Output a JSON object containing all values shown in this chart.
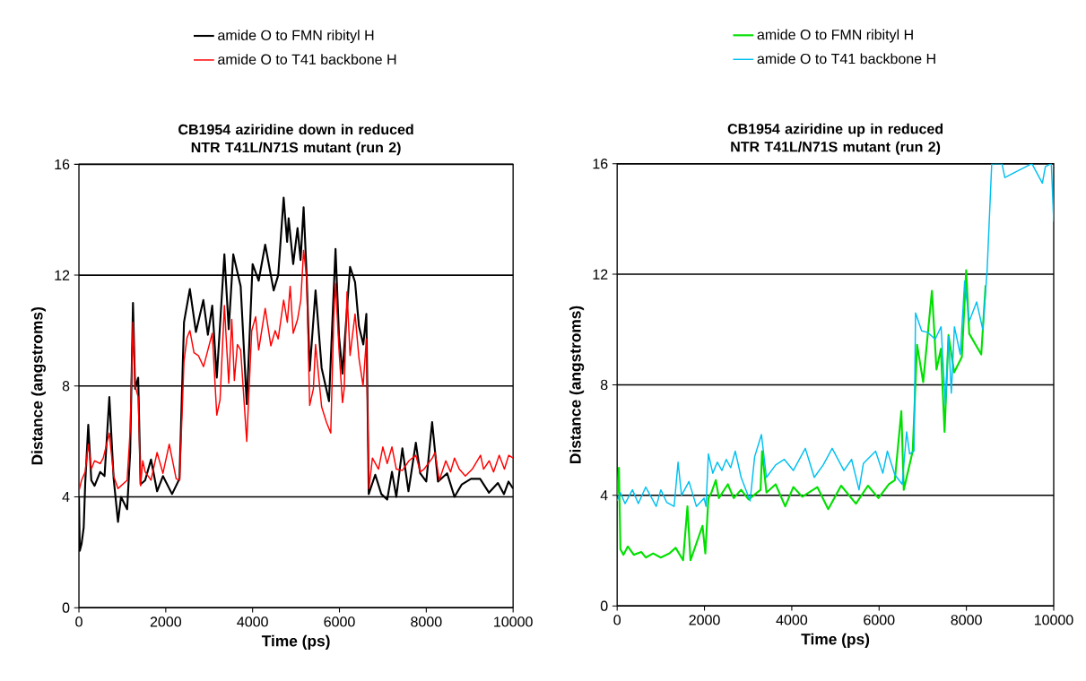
{
  "chart_data": [
    {
      "type": "line",
      "title": "CB1954 aziridine down in reduced NTR T41L/N71S mutant (run 2)",
      "xlabel": "Time (ps)",
      "ylabel": "Distance (angstroms)",
      "xlim": [
        0,
        10000
      ],
      "ylim": [
        0,
        16
      ],
      "xticks": [
        0,
        2000,
        4000,
        6000,
        8000,
        10000
      ],
      "yticks": [
        0,
        4,
        8,
        12,
        16
      ],
      "grid": "y",
      "legend": "top",
      "marker": "none",
      "line_style": "solid",
      "series": [
        {
          "name": "amide O to FMN ribityl H",
          "color": "#000000",
          "x": [
            0,
            20,
            60,
            110,
            145,
            215,
            285,
            360,
            490,
            590,
            700,
            800,
            900,
            970,
            1110,
            1180,
            1245,
            1295,
            1365,
            1420,
            1525,
            1660,
            1800,
            1935,
            2145,
            2315,
            2420,
            2555,
            2695,
            2865,
            2970,
            3070,
            3175,
            3350,
            3450,
            3555,
            3725,
            3865,
            4000,
            4140,
            4290,
            4485,
            4590,
            4715,
            4795,
            4830,
            4935,
            5035,
            5105,
            5175,
            5245,
            5315,
            5450,
            5590,
            5760,
            5830,
            5910,
            5990,
            6070,
            6175,
            6245,
            6360,
            6450,
            6550,
            6620,
            6675,
            6825,
            6965,
            7100,
            7210,
            7310,
            7450,
            7590,
            7760,
            7860,
            8000,
            8135,
            8270,
            8480,
            8650,
            8820,
            9030,
            9240,
            9445,
            9650,
            9790,
            9895,
            10000
          ],
          "values": [
            4.0,
            2.05,
            2.3,
            2.9,
            4.5,
            6.6,
            4.6,
            4.4,
            4.9,
            4.75,
            7.6,
            4.65,
            3.1,
            4.0,
            3.55,
            5.6,
            11.0,
            7.9,
            8.3,
            4.45,
            4.6,
            5.35,
            4.2,
            4.75,
            4.1,
            4.65,
            10.3,
            11.5,
            9.95,
            11.1,
            9.85,
            10.9,
            8.3,
            12.75,
            10.05,
            12.75,
            11.6,
            7.35,
            12.4,
            11.8,
            13.1,
            11.45,
            12.0,
            14.8,
            13.2,
            14.05,
            12.4,
            13.7,
            12.55,
            14.45,
            12.0,
            8.55,
            11.45,
            8.65,
            7.45,
            10.05,
            12.95,
            9.8,
            8.45,
            10.8,
            12.3,
            11.75,
            10.15,
            9.5,
            10.6,
            4.1,
            4.8,
            4.1,
            3.9,
            4.9,
            4.0,
            5.75,
            4.2,
            5.95,
            4.85,
            4.55,
            6.7,
            4.55,
            4.85,
            4.0,
            4.45,
            4.65,
            4.65,
            4.15,
            4.5,
            4.1,
            4.55,
            4.3
          ]
        },
        {
          "name": "amide O to T41 backbone H",
          "color": "#ff0000",
          "x": [
            0,
            60,
            145,
            215,
            285,
            360,
            490,
            560,
            700,
            800,
            900,
            970,
            1110,
            1180,
            1245,
            1295,
            1365,
            1420,
            1470,
            1525,
            1660,
            1800,
            1935,
            2080,
            2240,
            2320,
            2420,
            2490,
            2555,
            2650,
            2750,
            2870,
            2970,
            3070,
            3175,
            3250,
            3350,
            3450,
            3520,
            3580,
            3650,
            3725,
            3865,
            3980,
            4070,
            4140,
            4290,
            4420,
            4520,
            4590,
            4715,
            4800,
            4865,
            4935,
            5035,
            5110,
            5175,
            5245,
            5315,
            5400,
            5450,
            5590,
            5700,
            5800,
            5870,
            5910,
            5990,
            6070,
            6110,
            6175,
            6245,
            6360,
            6450,
            6545,
            6620,
            6680,
            6760,
            6900,
            7000,
            7100,
            7210,
            7310,
            7450,
            7600,
            7760,
            7860,
            7950,
            8140,
            8200,
            8300,
            8450,
            8560,
            8650,
            8760,
            8900,
            9060,
            9250,
            9320,
            9450,
            9550,
            9680,
            9800,
            9900,
            10000
          ],
          "values": [
            4.2,
            4.6,
            4.9,
            5.9,
            5.0,
            5.3,
            5.2,
            5.4,
            6.3,
            4.75,
            4.3,
            4.4,
            4.6,
            6.4,
            10.3,
            8.0,
            7.6,
            4.4,
            5.3,
            4.9,
            4.6,
            5.6,
            4.85,
            5.9,
            4.65,
            4.6,
            8.9,
            9.75,
            10.0,
            9.2,
            9.1,
            8.7,
            9.3,
            9.9,
            6.95,
            7.5,
            10.9,
            8.1,
            10.4,
            8.2,
            9.5,
            9.3,
            6.0,
            10.0,
            10.5,
            9.3,
            10.8,
            9.45,
            10.0,
            9.7,
            11.1,
            10.3,
            11.6,
            9.9,
            10.4,
            11.1,
            12.9,
            11.9,
            7.3,
            7.9,
            9.5,
            7.25,
            6.7,
            6.3,
            10.5,
            11.7,
            9.3,
            7.4,
            7.9,
            11.4,
            9.1,
            10.6,
            9.0,
            8.0,
            9.7,
            4.3,
            5.4,
            5.0,
            5.8,
            5.2,
            5.8,
            5.0,
            4.95,
            5.3,
            5.5,
            4.9,
            5.0,
            5.4,
            5.6,
            4.6,
            5.3,
            4.9,
            5.4,
            5.0,
            4.75,
            5.0,
            5.5,
            5.0,
            5.3,
            4.9,
            5.5,
            5.0,
            5.5,
            5.4
          ]
        }
      ]
    },
    {
      "type": "line",
      "title": "CB1954 aziridine up in reduced NTR T41L/N71S mutant (run 2)",
      "xlabel": "Time (ps)",
      "ylabel": "Distance (angstroms)",
      "xlim": [
        0,
        10000
      ],
      "ylim": [
        0,
        16
      ],
      "xticks": [
        0,
        2000,
        4000,
        6000,
        8000,
        10000
      ],
      "yticks": [
        0,
        4,
        8,
        12,
        16
      ],
      "grid": "y",
      "legend": "top",
      "marker": "none",
      "line_style": "solid",
      "series": [
        {
          "name": "amide O to FMN ribityl H",
          "color": "#00e000",
          "x": [
            0,
            40,
            75,
            145,
            245,
            380,
            555,
            655,
            825,
            1000,
            1200,
            1340,
            1510,
            1610,
            1680,
            1955,
            2020,
            2090,
            2160,
            2260,
            2330,
            2535,
            2670,
            2840,
            3010,
            3285,
            3320,
            3420,
            3630,
            3850,
            4035,
            4240,
            4585,
            4835,
            5130,
            5470,
            5745,
            5985,
            6225,
            6360,
            6510,
            6565,
            6770,
            6870,
            7010,
            7210,
            7315,
            7415,
            7500,
            7590,
            7720,
            7895,
            7995,
            8065,
            8340,
            8440
          ],
          "values": [
            4.0,
            5.0,
            2.05,
            1.85,
            2.15,
            1.85,
            1.95,
            1.75,
            1.9,
            1.75,
            1.9,
            2.1,
            1.65,
            3.6,
            1.65,
            2.9,
            1.9,
            3.9,
            4.1,
            4.55,
            3.9,
            4.4,
            3.9,
            4.2,
            3.85,
            4.2,
            5.6,
            4.1,
            4.4,
            3.6,
            4.3,
            3.95,
            4.3,
            3.5,
            4.35,
            3.7,
            4.35,
            3.9,
            4.4,
            4.55,
            7.05,
            4.2,
            5.6,
            9.45,
            8.1,
            11.4,
            8.55,
            9.3,
            6.3,
            9.8,
            8.45,
            9.0,
            12.15,
            9.85,
            9.1,
            11.6
          ]
        },
        {
          "name": "amide O to T41 backbone H",
          "color": "#00c0f0",
          "x": [
            0,
            75,
            180,
            350,
            485,
            655,
            895,
            1000,
            1135,
            1305,
            1395,
            1475,
            1645,
            1815,
            1990,
            2035,
            2090,
            2190,
            2295,
            2400,
            2500,
            2600,
            2705,
            2840,
            3045,
            3150,
            3305,
            3420,
            3630,
            3830,
            4035,
            4310,
            4515,
            4720,
            4925,
            5195,
            5370,
            5540,
            5640,
            5920,
            6085,
            6190,
            6360,
            6530,
            6630,
            6700,
            6800,
            6835,
            6975,
            7110,
            7285,
            7420,
            7520,
            7590,
            7655,
            7725,
            7860,
            7960,
            8065,
            8235,
            8375,
            8475,
            8580,
            8815,
            8880,
            9500,
            9740,
            9810,
            9945,
            10000
          ],
          "values": [
            3.8,
            4.1,
            3.7,
            4.2,
            3.7,
            4.3,
            3.6,
            4.2,
            3.75,
            3.6,
            5.2,
            4.0,
            4.5,
            3.6,
            3.9,
            3.6,
            5.5,
            4.8,
            5.2,
            4.9,
            5.3,
            5.0,
            5.6,
            4.65,
            3.8,
            5.4,
            6.2,
            4.65,
            5.1,
            5.3,
            4.9,
            5.7,
            4.65,
            5.1,
            5.7,
            4.9,
            5.3,
            4.2,
            5.15,
            5.6,
            4.8,
            5.6,
            4.75,
            4.4,
            6.3,
            5.5,
            5.6,
            10.6,
            9.95,
            9.9,
            9.65,
            10.1,
            7.25,
            9.75,
            7.7,
            10.1,
            9.1,
            11.75,
            10.3,
            11.0,
            10.0,
            12.15,
            16,
            16,
            15.5,
            16,
            15.3,
            15.9,
            16,
            13.9
          ]
        }
      ]
    }
  ]
}
